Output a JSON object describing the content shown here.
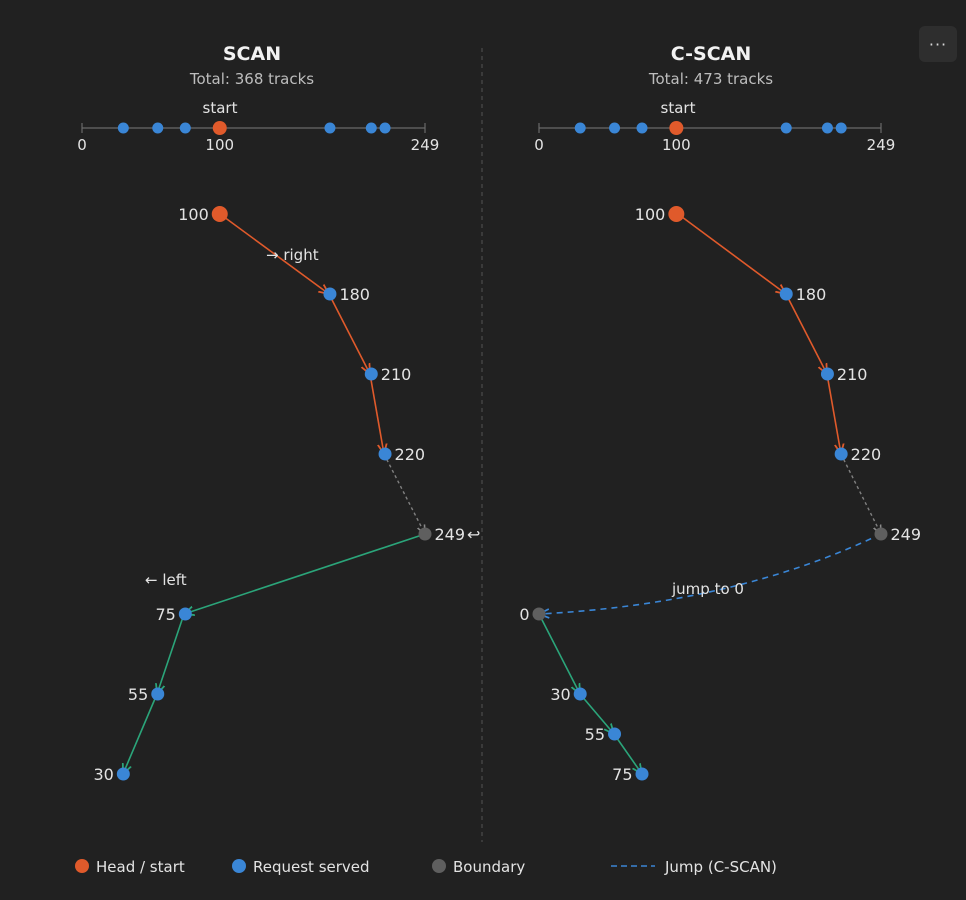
{
  "menu": {
    "icon": "more-horizontal-icon",
    "label": "···"
  },
  "colors": {
    "background": "#212121",
    "head": "#e05a2b",
    "request": "#3a86d6",
    "boundary": "#5f5f5f",
    "right_path": "#e05a2b",
    "left_path": "#2ba57a",
    "jump": "#3a86d6",
    "to_boundary": "#808080",
    "text": "#e3e3e3",
    "muted": "#bdbdbd"
  },
  "disk": {
    "min": 0,
    "max": 249,
    "start": 100,
    "requests": [
      30,
      55,
      75,
      180,
      210,
      220
    ]
  },
  "panels": [
    {
      "title": "SCAN",
      "total": "Total: 368 tracks",
      "start_label": "start",
      "axis_ticks": [
        "0",
        "100",
        "249"
      ],
      "direction_right": "→ right",
      "direction_left": "← left",
      "return_icon": "↩",
      "sequence": [
        {
          "track": 100,
          "kind": "head",
          "label": "100"
        },
        {
          "track": 180,
          "kind": "request",
          "label": "180"
        },
        {
          "track": 210,
          "kind": "request",
          "label": "210"
        },
        {
          "track": 220,
          "kind": "request",
          "label": "220"
        },
        {
          "track": 249,
          "kind": "boundary",
          "label": "249"
        },
        {
          "track": 75,
          "kind": "request",
          "label": "75"
        },
        {
          "track": 55,
          "kind": "request",
          "label": "55"
        },
        {
          "track": 30,
          "kind": "request",
          "label": "30"
        }
      ]
    },
    {
      "title": "C-SCAN",
      "total": "Total: 473 tracks",
      "start_label": "start",
      "axis_ticks": [
        "0",
        "100",
        "249"
      ],
      "jump_label": "jump to 0",
      "sequence": [
        {
          "track": 100,
          "kind": "head",
          "label": "100"
        },
        {
          "track": 180,
          "kind": "request",
          "label": "180"
        },
        {
          "track": 210,
          "kind": "request",
          "label": "210"
        },
        {
          "track": 220,
          "kind": "request",
          "label": "220"
        },
        {
          "track": 249,
          "kind": "boundary",
          "label": "249"
        },
        {
          "track": 0,
          "kind": "boundary",
          "label": "0"
        },
        {
          "track": 30,
          "kind": "request",
          "label": "30"
        },
        {
          "track": 55,
          "kind": "request",
          "label": "55"
        },
        {
          "track": 75,
          "kind": "request",
          "label": "75"
        }
      ]
    }
  ],
  "legend": {
    "head": "Head / start",
    "request": "Request served",
    "boundary": "Boundary",
    "jump": "Jump (C-SCAN)"
  }
}
